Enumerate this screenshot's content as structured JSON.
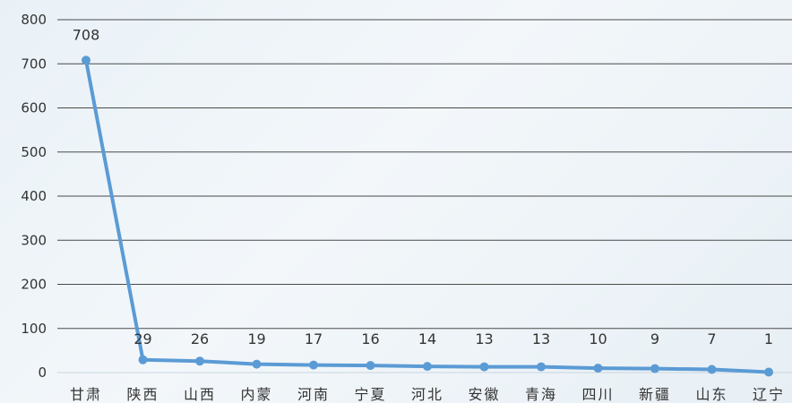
{
  "chart_data": {
    "type": "line",
    "title": "",
    "xlabel": "",
    "ylabel": "",
    "categories": [
      "甘肃",
      "陕西",
      "山西",
      "内蒙",
      "河南",
      "宁夏",
      "河北",
      "安徽",
      "青海",
      "四川",
      "新疆",
      "山东",
      "辽宁"
    ],
    "series": [
      {
        "values": [
          708,
          29,
          26,
          19,
          17,
          16,
          14,
          13,
          13,
          10,
          9,
          7,
          1
        ]
      }
    ],
    "data_labels": [
      "708",
      "29",
      "26",
      "19",
      "17",
      "16",
      "14",
      "13",
      "13",
      "10",
      "9",
      "7",
      "1"
    ],
    "ylim": [
      0,
      800
    ],
    "yticks": [
      0,
      100,
      200,
      300,
      400,
      500,
      600,
      700,
      800
    ],
    "ytick_labels": [
      "0",
      "100",
      "200",
      "300",
      "400",
      "500",
      "600",
      "700",
      "800"
    ],
    "grid": true,
    "legend": "none",
    "colors": {
      "line": "#5b9bd5",
      "grid": "#4a4a4a",
      "text": "#333333"
    }
  }
}
